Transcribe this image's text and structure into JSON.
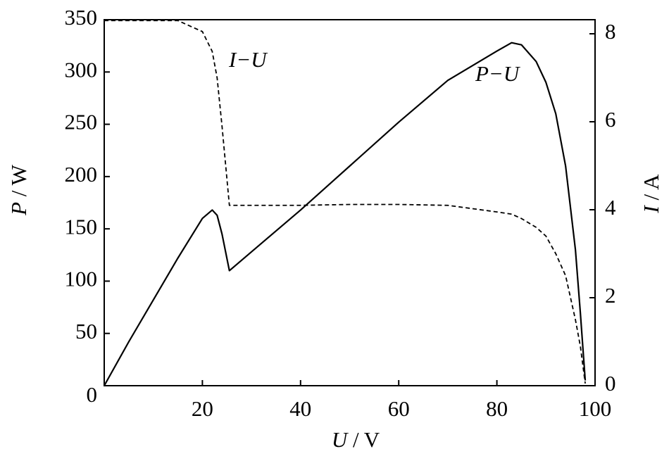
{
  "chart_data": {
    "type": "line",
    "x_label": "U / V",
    "y_label": "P / W",
    "y2_label": "I / A",
    "annotations": [
      "I−U",
      "P−U"
    ],
    "xlim": [
      0,
      100
    ],
    "xticks": [
      20,
      40,
      60,
      80,
      100
    ],
    "ylim": [
      0,
      350
    ],
    "yticks": [
      0,
      50,
      100,
      150,
      200,
      250,
      300,
      350
    ],
    "y2lim": [
      0,
      8.32
    ],
    "y2ticks": [
      0,
      2,
      4,
      6,
      8
    ],
    "x": [
      0,
      5,
      10,
      15,
      20,
      22,
      23,
      24,
      25.5,
      30,
      40,
      50,
      60,
      70,
      80,
      83,
      85,
      88,
      90,
      92,
      94,
      96,
      97,
      98
    ],
    "series": [
      {
        "color": "#000000",
        "dash": false,
        "values": [
          0,
          42,
          82,
          122,
          160,
          168,
          163,
          145,
          110,
          128,
          168,
          210,
          252,
          292,
          320,
          328,
          326,
          310,
          290,
          260,
          210,
          130,
          70,
          5
        ]
      },
      {
        "color": "#000000",
        "dash": true,
        "axis": "y2",
        "values": [
          8.3,
          8.3,
          8.3,
          8.3,
          8.05,
          7.6,
          7.0,
          5.9,
          4.1,
          4.1,
          4.1,
          4.12,
          4.12,
          4.1,
          3.95,
          3.9,
          3.8,
          3.6,
          3.4,
          3.0,
          2.5,
          1.5,
          0.9,
          0.05
        ]
      }
    ]
  }
}
